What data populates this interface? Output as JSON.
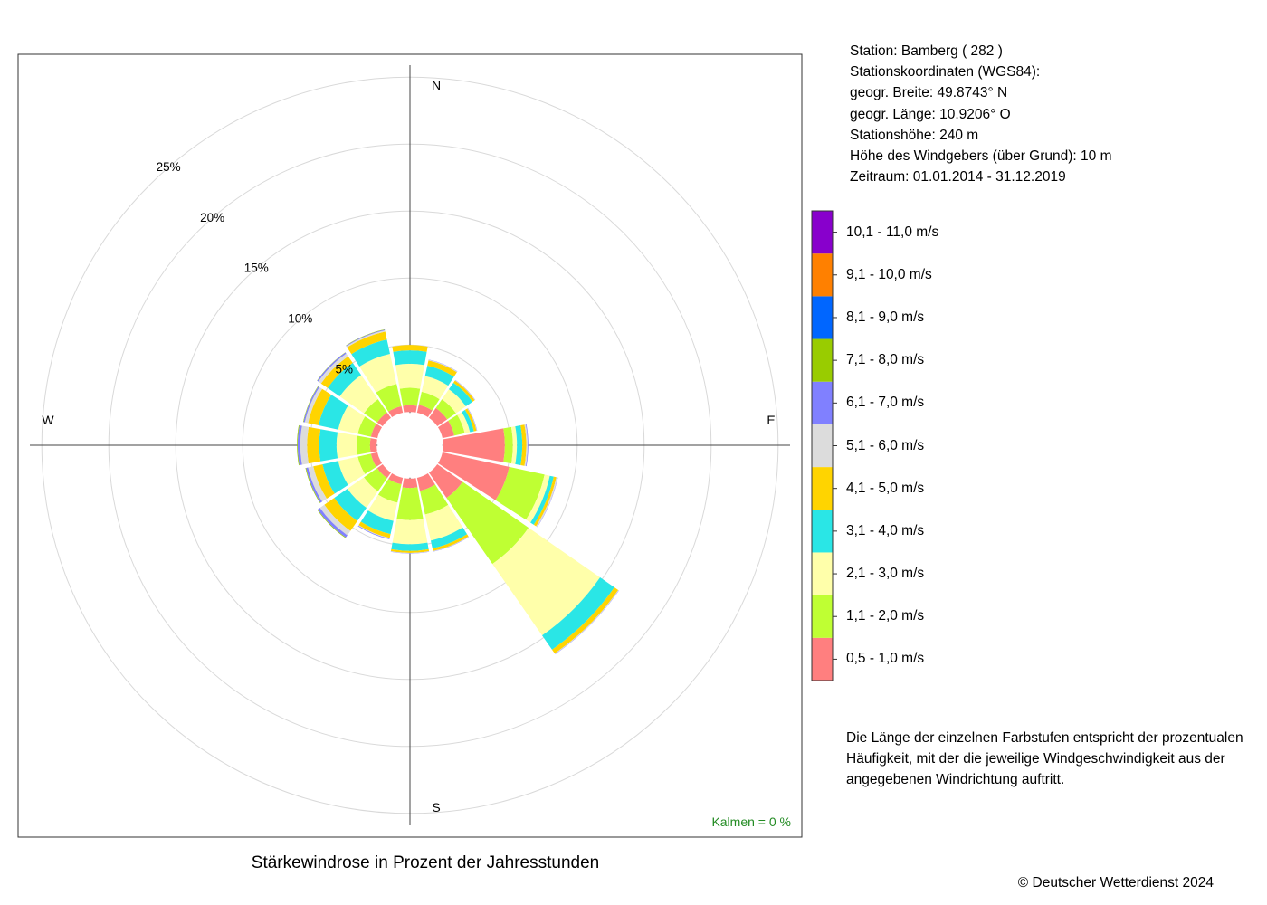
{
  "chart_data": {
    "type": "polar-stacked-bar",
    "title": "Stärkewindrose in Prozent der Jahresstunden",
    "directions": [
      "N",
      "NNE",
      "NE",
      "ENE",
      "E",
      "ESE",
      "SE",
      "SSE",
      "S",
      "SSW",
      "SW",
      "WSW",
      "W",
      "WNW",
      "NW",
      "NNW"
    ],
    "compass_labels": [
      "N",
      "E",
      "S",
      "W"
    ],
    "radial_ticks": [
      "5%",
      "10%",
      "15%",
      "20%",
      "25%"
    ],
    "radial_tick_values": [
      5,
      10,
      15,
      20,
      25
    ],
    "r_max": 25,
    "center_hole": 1.0,
    "speed_classes": [
      {
        "name": "0,5 - 1,0 m/s",
        "color": "#ff7f7f"
      },
      {
        "name": "1,1 - 2,0 m/s",
        "color": "#bfff33"
      },
      {
        "name": "2,1 - 3,0 m/s",
        "color": "#ffffaa"
      },
      {
        "name": "3,1 - 4,0 m/s",
        "color": "#2ae6e6"
      },
      {
        "name": "4,1 - 5,0 m/s",
        "color": "#ffd400"
      },
      {
        "name": "5,1 - 6,0 m/s",
        "color": "#dcdcdc"
      },
      {
        "name": "6,1 - 7,0 m/s",
        "color": "#8080ff"
      },
      {
        "name": "7,1 - 8,0 m/s",
        "color": "#99cc00"
      },
      {
        "name": "8,1 - 9,0 m/s",
        "color": "#0066ff"
      },
      {
        "name": "9,1 - 10,0 m/s",
        "color": "#ff8000"
      },
      {
        "name": "10,1 - 11,0 m/s",
        "color": "#8800cc"
      }
    ],
    "frequencies": [
      [
        0.5,
        1.3,
        1.8,
        1.0,
        0.4,
        0,
        0,
        0,
        0,
        0,
        0
      ],
      [
        0.6,
        1.0,
        1.2,
        0.8,
        0.4,
        0.05,
        0.02,
        0,
        0,
        0,
        0
      ],
      [
        0.9,
        0.8,
        0.9,
        0.6,
        0.2,
        0.03,
        0.02,
        0,
        0,
        0,
        0
      ],
      [
        0.9,
        0.8,
        0.4,
        0.3,
        0.2,
        0.03,
        0.02,
        0,
        0,
        0,
        0
      ],
      [
        4.6,
        0.6,
        0.3,
        0.4,
        0.3,
        0.1,
        0.05,
        0,
        0,
        0,
        0
      ],
      [
        5.1,
        2.7,
        0.4,
        0.3,
        0.2,
        0.1,
        0.02,
        0,
        0,
        0,
        0
      ],
      [
        2.3,
        6.0,
        6.5,
        1.3,
        0.35,
        0.05,
        0.02,
        0,
        0,
        0,
        0
      ],
      [
        1.0,
        1.8,
        2.0,
        0.6,
        0.2,
        0.03,
        0.02,
        0,
        0,
        0,
        0
      ],
      [
        0.7,
        2.4,
        1.8,
        0.5,
        0.15,
        0.03,
        0.02,
        0,
        0,
        0,
        0
      ],
      [
        0.5,
        1.4,
        1.4,
        1.0,
        0.3,
        0.05,
        0.05,
        0,
        0,
        0,
        0
      ],
      [
        0.5,
        1.2,
        1.5,
        1.2,
        0.9,
        0.4,
        0.2,
        0.05,
        0,
        0,
        0
      ],
      [
        0.5,
        1.0,
        1.5,
        1.2,
        0.7,
        0.4,
        0.15,
        0.05,
        0,
        0,
        0
      ],
      [
        0.5,
        1.0,
        1.5,
        1.3,
        0.9,
        0.5,
        0.2,
        0.05,
        0,
        0,
        0
      ],
      [
        0.5,
        1.0,
        1.5,
        1.5,
        0.8,
        0.25,
        0.1,
        0.03,
        0,
        0,
        0
      ],
      [
        0.5,
        1.2,
        2.2,
        1.1,
        0.6,
        0.25,
        0.1,
        0.02,
        0,
        0,
        0
      ],
      [
        0.5,
        1.7,
        2.3,
        1.1,
        0.6,
        0.1,
        0.05,
        0.02,
        0,
        0,
        0
      ]
    ],
    "calm_label": "Kalmen  =  0 %"
  },
  "station": {
    "line1": "Station:  Bamberg  ( 282 )",
    "line2": "Stationskoordinaten (WGS84):",
    "line3": "geogr. Breite: 49.8743° N",
    "line4": "geogr. Länge: 10.9206° O",
    "line5": "Stationshöhe: 240 m",
    "line6": "Höhe des Windgebers (über Grund): 10 m",
    "line7": "Zeitraum: 01.01.2014 - 31.12.2019"
  },
  "note": "Die Länge der einzelnen Farbstufen entspricht der prozentualen Häufigkeit, mit der die jeweilige Windgeschwindigkeit aus der angegebenen Windrichtung auftritt.",
  "copyright": "© Deutscher Wetterdienst  2024"
}
